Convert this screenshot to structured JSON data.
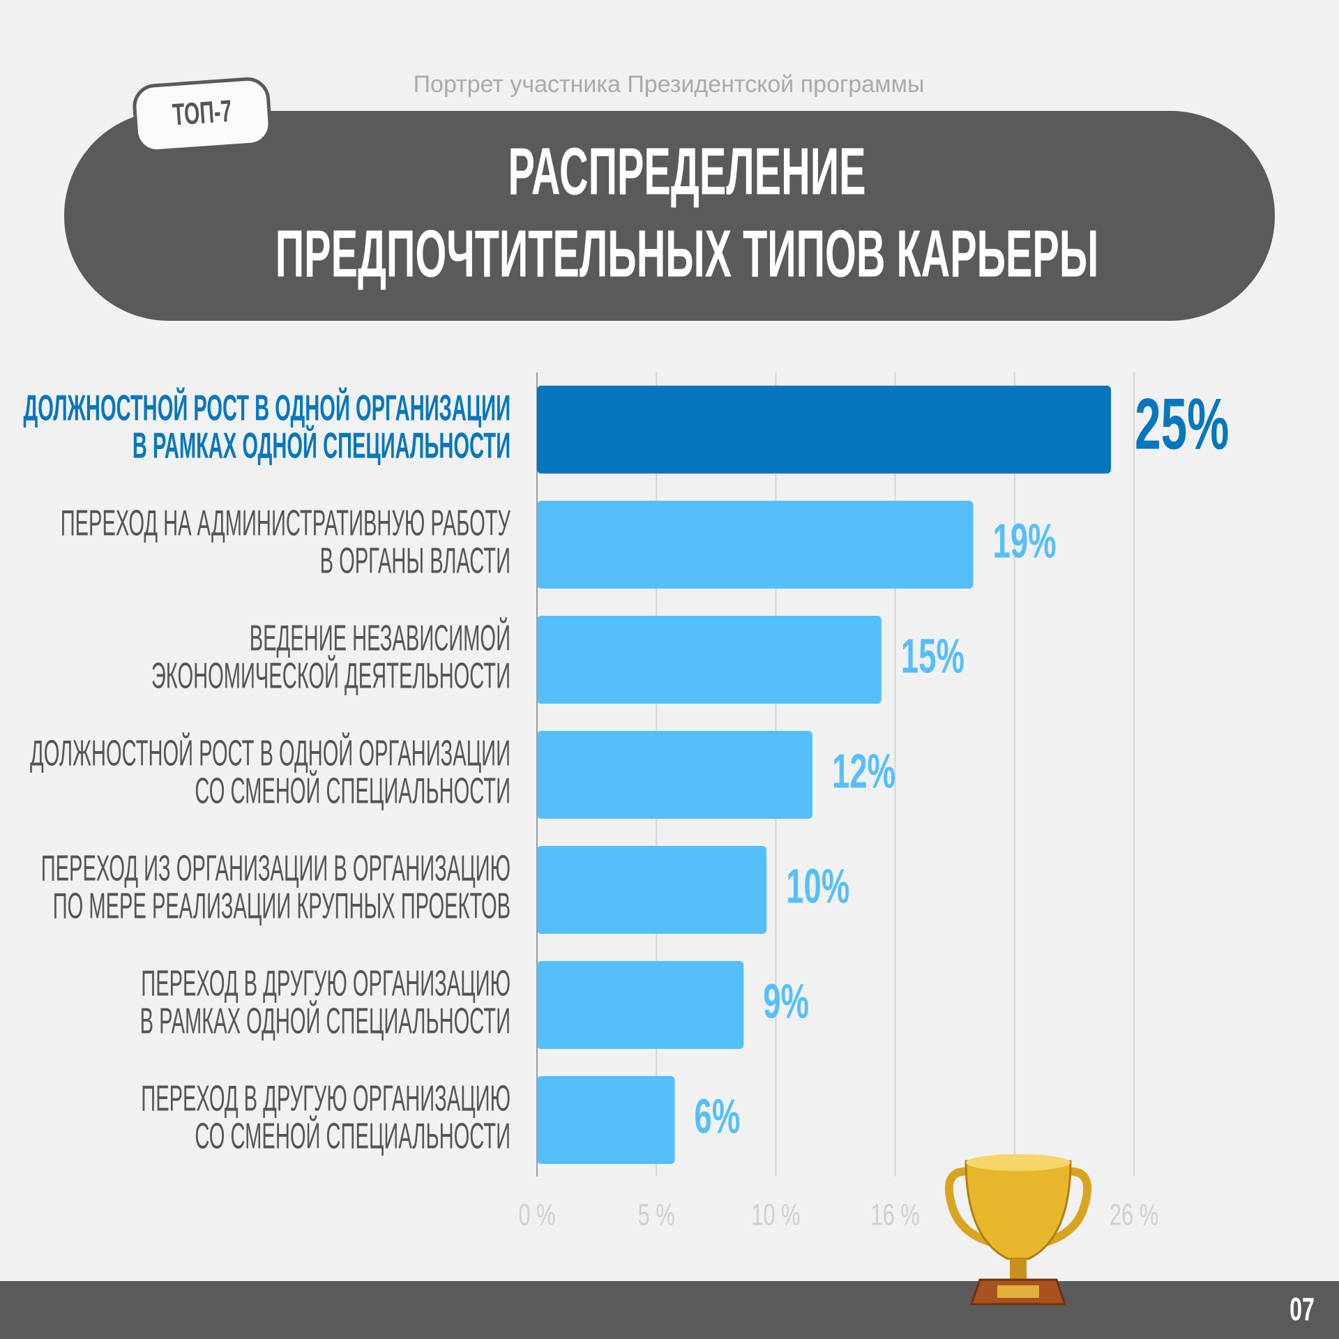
{
  "tag": "ТОП-7",
  "page_number": "07",
  "chart_data": {
    "type": "barh",
    "subtitle": "Портрет участника Президентской программы",
    "title": [
      "РАСПРЕДЕЛЕНИЕ",
      "ПРЕДПОЧТИТЕЛЬНЫХ ТИПОВ КАРЬЕРЫ"
    ],
    "categories": [
      [
        "ДОЛЖНОСТНОЙ РОСТ В ОДНОЙ ОРГАНИЗАЦИИ",
        "В РАМКАХ ОДНОЙ СПЕЦИАЛЬНОСТИ"
      ],
      [
        "ПЕРЕХОД НА АДМИНИСТРАТИВНУЮ РАБОТУ",
        "В ОРГАНЫ ВЛАСТИ"
      ],
      [
        "ВЕДЕНИЕ НЕЗАВИСИМОЙ",
        "ЭКОНОМИЧЕСКОЙ ДЕЯТЕЛЬНОСТИ"
      ],
      [
        "ДОЛЖНОСТНОЙ РОСТ В ОДНОЙ ОРГАНИЗАЦИИ",
        "СО СМЕНОЙ СПЕЦИАЛЬНОСТИ"
      ],
      [
        "ПЕРЕХОД ИЗ ОРГАНИЗАЦИИ В ОРГАНИЗАЦИЮ",
        "ПО МЕРЕ РЕАЛИЗАЦИИ КРУПНЫХ ПРОЕКТОВ"
      ],
      [
        "ПЕРЕХОД В ДРУГУЮ ОРГАНИЗАЦИЮ",
        "В РАМКАХ ОДНОЙ СПЕЦИАЛЬНОСТИ"
      ],
      [
        "ПЕРЕХОД В ДРУГУЮ ОРГАНИЗАЦИЮ",
        "СО СМЕНОЙ СПЕЦИАЛЬНОСТИ"
      ]
    ],
    "values": [
      25,
      19,
      15,
      12,
      10,
      9,
      6
    ],
    "value_labels": [
      "25%",
      "19%",
      "15%",
      "12%",
      "10%",
      "9%",
      "6%"
    ],
    "colors": [
      "#0677be",
      "#55bffb",
      "#55bffb",
      "#55bffb",
      "#55bffb",
      "#55bffb",
      "#55bffb"
    ],
    "xlim": [
      0,
      26
    ],
    "xticks": [
      {
        "value": 0,
        "label": "0 %"
      },
      {
        "value": 5.2,
        "label": "5 %"
      },
      {
        "value": 10.4,
        "label": "10 %"
      },
      {
        "value": 15.6,
        "label": "16 %"
      },
      {
        "value": 20.8,
        "label": null
      },
      {
        "value": 26,
        "label": "26 %"
      }
    ],
    "grid": true
  }
}
